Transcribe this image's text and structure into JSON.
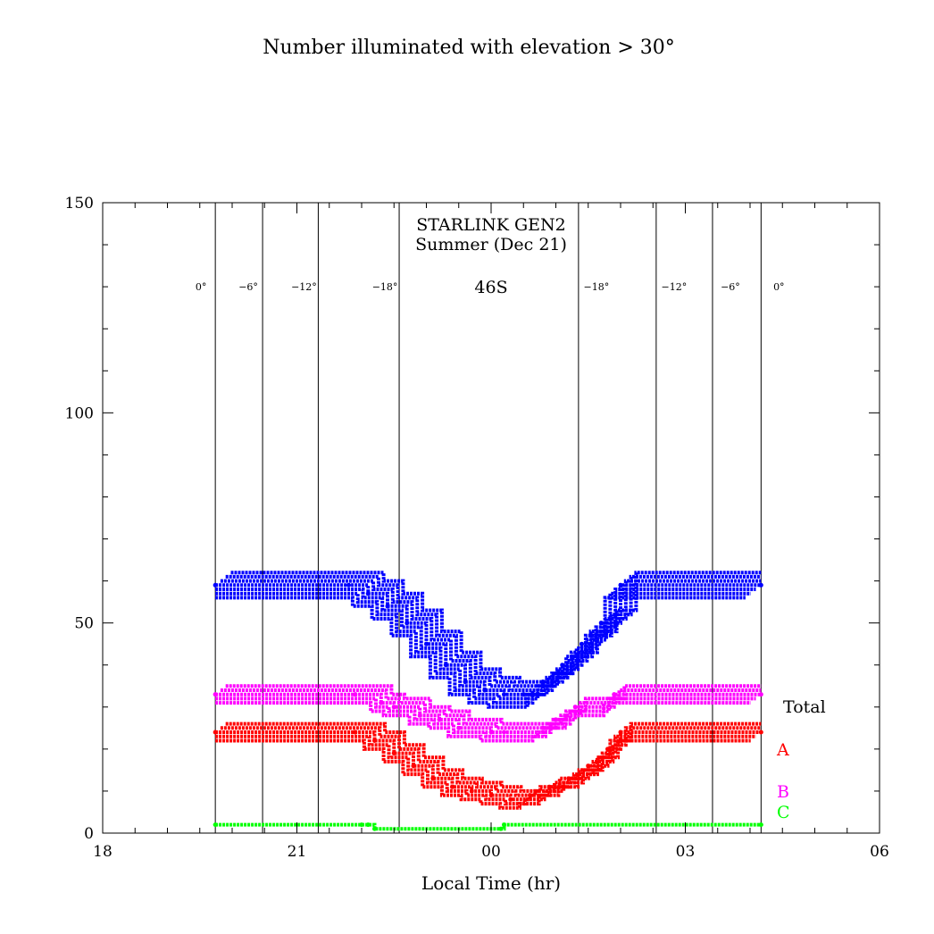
{
  "chart_data": {
    "type": "line",
    "title": "Number illuminated with elevation > 30°",
    "xlabel": "Local Time (hr)",
    "ylabel": "",
    "xlim": [
      18,
      30
    ],
    "ylim": [
      0,
      150
    ],
    "x_ticks": [
      {
        "value": 18,
        "label": "18"
      },
      {
        "value": 21,
        "label": "21"
      },
      {
        "value": 24,
        "label": "00"
      },
      {
        "value": 27,
        "label": "03"
      },
      {
        "value": 30,
        "label": "06"
      }
    ],
    "y_ticks": [
      0,
      50,
      100,
      150
    ],
    "annotations": {
      "satellite": "STARLINK GEN2",
      "season": "Summer (Dec 21)",
      "latitude": "46S"
    },
    "twilight_lines": [
      {
        "x": 19.74,
        "label": "0°"
      },
      {
        "x": 20.47,
        "label": "−6°"
      },
      {
        "x": 21.33,
        "label": "−12°"
      },
      {
        "x": 22.58,
        "label": "−18°"
      },
      {
        "x": 25.35,
        "label": "−18°"
      },
      {
        "x": 26.55,
        "label": "−12°"
      },
      {
        "x": 27.42,
        "label": "−6°"
      },
      {
        "x": 28.17,
        "label": "0°"
      }
    ],
    "legend": [
      {
        "key": "total",
        "label": "Total"
      },
      {
        "key": "A",
        "label": "A"
      },
      {
        "key": "B",
        "label": "B"
      },
      {
        "key": "C",
        "label": "C"
      }
    ],
    "series": [
      {
        "name": "Total",
        "key": "total",
        "color": "#0000ff",
        "x": [
          19.74,
          21.8,
          22.1,
          22.4,
          22.7,
          23.0,
          23.3,
          23.6,
          23.9,
          24.2,
          24.5,
          24.8,
          25.1,
          25.4,
          25.7,
          26.0,
          28.17
        ],
        "y": [
          59,
          59,
          57,
          54,
          50,
          45,
          40,
          36,
          34,
          33,
          33,
          36,
          40,
          45,
          50,
          59,
          59
        ],
        "band": [
          -3,
          3
        ]
      },
      {
        "name": "B",
        "key": "B",
        "color": "#ff00ff",
        "x": [
          19.74,
          21.9,
          22.3,
          22.5,
          22.9,
          23.2,
          23.5,
          24.0,
          24.2,
          24.8,
          25.0,
          25.3,
          25.9,
          28.17
        ],
        "y": [
          33,
          33,
          31,
          30,
          28,
          27,
          25,
          24,
          24,
          25,
          27,
          30,
          33,
          33
        ],
        "band": [
          -2,
          2
        ]
      },
      {
        "name": "A",
        "key": "A",
        "color": "#ff0000",
        "x": [
          19.74,
          21.9,
          22.2,
          22.5,
          22.8,
          23.1,
          23.4,
          23.7,
          24.0,
          24.3,
          24.6,
          24.9,
          25.2,
          25.5,
          25.8,
          26.0,
          28.17
        ],
        "y": [
          24,
          24,
          22,
          19,
          16,
          13,
          11,
          10,
          9,
          8,
          9,
          11,
          13,
          16,
          20,
          24,
          24
        ],
        "band": [
          -2,
          2
        ]
      },
      {
        "name": "C",
        "key": "C",
        "color": "#00ff00",
        "x": [
          19.74,
          22.0,
          22.1,
          22.2,
          24.15,
          24.2,
          28.17
        ],
        "y": [
          2,
          2,
          2,
          1,
          1,
          2,
          2
        ],
        "band": [
          0,
          0
        ]
      }
    ],
    "colors": {
      "total": "#0000ff",
      "A": "#ff0000",
      "B": "#ff00ff",
      "C": "#00ff00",
      "axes": "#000000"
    }
  }
}
